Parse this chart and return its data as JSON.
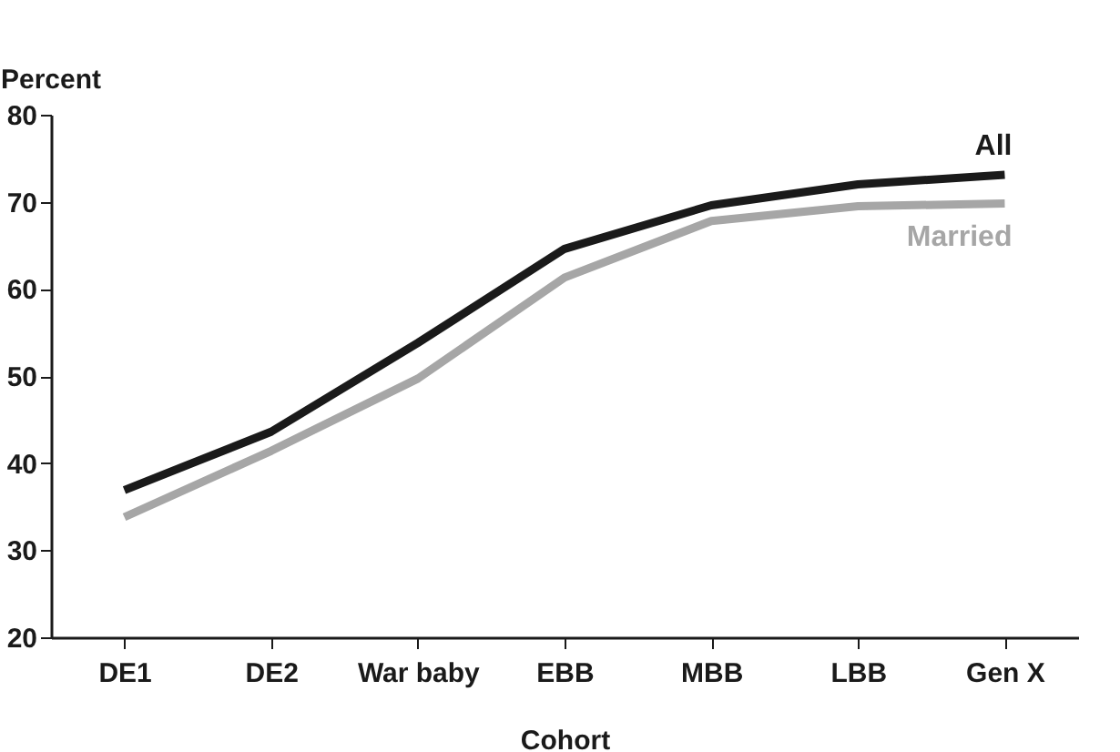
{
  "chart_data": {
    "type": "line",
    "xlabel": "Cohort",
    "ylabel": "Percent",
    "categories": [
      "DE1",
      "DE2",
      "War baby",
      "EBB",
      "MBB",
      "LBB",
      "Gen X"
    ],
    "series": [
      {
        "name": "All",
        "color": "#1a1a1a",
        "values": [
          36.9,
          43.6,
          53.8,
          64.6,
          69.6,
          72.0,
          73.1
        ]
      },
      {
        "name": "Married",
        "color": "#a6a6a6",
        "values": [
          33.8,
          41.4,
          49.7,
          61.3,
          67.8,
          69.5,
          69.8
        ]
      }
    ],
    "ylim": [
      20,
      80
    ],
    "yticks": [
      20,
      30,
      40,
      50,
      60,
      70,
      80
    ],
    "grid": false,
    "legend": false
  }
}
